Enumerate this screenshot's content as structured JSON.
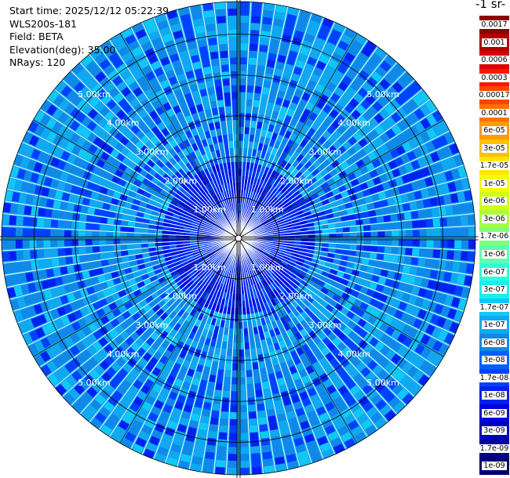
{
  "info": {
    "start_time": "Start time: 2025/12/12 05:22:39",
    "instrument": "WLS200s-181",
    "field": "Field: BETA",
    "elevation": "Elevation(deg): 35.00",
    "nrays": "NRays: 120"
  },
  "colorbar": {
    "title": "-1 sr-",
    "ticks": [
      "0.0017",
      "0.001",
      "0.0006",
      "0.0003",
      "0.00017",
      "0.0001",
      "6e-05",
      "3e-05",
      "1.7e-05",
      "1e-05",
      "6e-06",
      "3e-06",
      "1.7e-06",
      "1e-06",
      "6e-07",
      "3e-07",
      "1.7e-07",
      "1e-07",
      "6e-08",
      "3e-08",
      "1.7e-08",
      "1e-08",
      "6e-09",
      "3e-09",
      "1.7e-09",
      "1e-09"
    ],
    "colors": [
      "#8b0000",
      "#b00000",
      "#d80000",
      "#ff1500",
      "#ff4400",
      "#ff7000",
      "#ff9a00",
      "#ffc200",
      "#ffe600",
      "#f4ff00",
      "#d2ff12",
      "#a8ff3a",
      "#80ff7a",
      "#5dffb0",
      "#32ffd8",
      "#16f0f0",
      "#10c8f8",
      "#10a8f0",
      "#1088e8",
      "#0060ff",
      "#0040ff",
      "#0020f0",
      "#0000e0",
      "#0000c0",
      "#000098",
      "#000070"
    ]
  },
  "chart_data": {
    "type": "heatmap",
    "projection": "polar-ppi",
    "field": "BETA",
    "units": "sr-1",
    "nrays": 120,
    "elevation_deg": 35.0,
    "range_ring_labels": [
      "1.00km",
      "2.00km",
      "3.00km",
      "4.00km",
      "5.00km"
    ],
    "range_rings_km": [
      1,
      2,
      3,
      4,
      5
    ],
    "max_range_km": 5.8,
    "value_range": [
      1e-09,
      0.0017
    ],
    "dominant_values": [
      1.7e-08,
      3e-08,
      6e-08,
      1e-07,
      1.7e-07
    ],
    "grid": true
  }
}
